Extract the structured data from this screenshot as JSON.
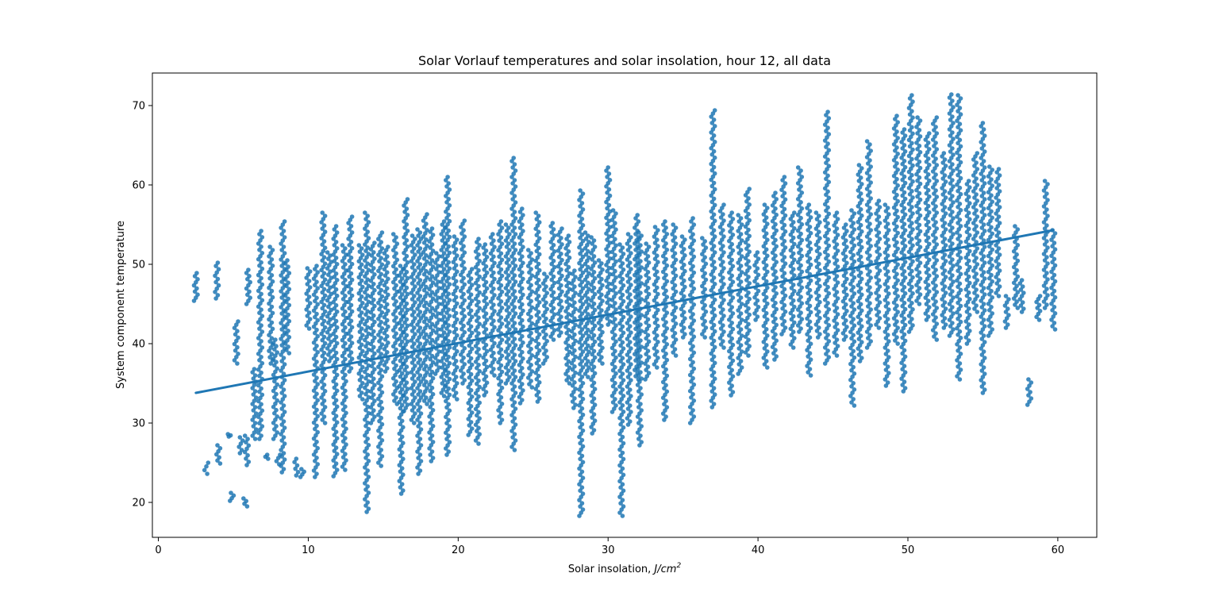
{
  "chart_data": {
    "type": "scatter",
    "title": "Solar Vorlauf temperatures and solar insolation, hour 12, all data",
    "xlabel": "Solar insolation, ",
    "xlabel_unit": "J/cm",
    "xlabel_unit_exponent": "2",
    "ylabel": "System component temperature",
    "xlim": [
      -0.4,
      62.6
    ],
    "ylim": [
      15.6,
      74.1
    ],
    "xticks": [
      0,
      10,
      20,
      30,
      40,
      50,
      60
    ],
    "yticks": [
      20,
      30,
      40,
      50,
      60,
      70
    ],
    "xtick_labels": [
      "0",
      "10",
      "20",
      "30",
      "40",
      "50",
      "60"
    ],
    "ytick_labels": [
      "20",
      "30",
      "40",
      "50",
      "60",
      "70"
    ],
    "grid": false,
    "legend": "none",
    "point_color": "#1f77b4",
    "regression_line": {
      "x": [
        2.5,
        59.7
      ],
      "y": [
        33.8,
        54.3
      ]
    },
    "columns": [
      [
        2.5,
        45.4,
        48.9
      ],
      [
        3.2,
        23.6,
        25.0
      ],
      [
        3.9,
        45.7,
        50.2
      ],
      [
        4.0,
        24.9,
        27.2
      ],
      [
        4.7,
        28.3,
        28.6
      ],
      [
        4.9,
        20.2,
        21.2
      ],
      [
        5.2,
        37.5,
        42.8
      ],
      [
        5.5,
        26.2,
        28.2
      ],
      [
        5.8,
        19.5,
        20.5
      ],
      [
        5.9,
        24.7,
        28.4
      ],
      [
        6.0,
        45.0,
        49.3
      ],
      [
        6.4,
        28.0,
        36.8
      ],
      [
        6.8,
        28.0,
        54.2
      ],
      [
        7.2,
        25.5,
        26.0
      ],
      [
        7.5,
        37.5,
        52.2
      ],
      [
        7.8,
        28.0,
        40.5
      ],
      [
        8.0,
        24.8,
        26.0
      ],
      [
        8.3,
        23.8,
        55.4
      ],
      [
        8.6,
        38.8,
        50.5
      ],
      [
        9.2,
        23.4,
        25.5
      ],
      [
        9.6,
        23.2,
        24.2
      ],
      [
        10.0,
        41.9,
        49.5
      ],
      [
        10.5,
        23.2,
        49.8
      ],
      [
        11.0,
        30.0,
        56.5
      ],
      [
        11.4,
        37.8,
        51.5
      ],
      [
        11.8,
        23.3,
        54.8
      ],
      [
        12.4,
        24.1,
        52.4
      ],
      [
        12.8,
        36.5,
        56.0
      ],
      [
        13.5,
        33.0,
        52.4
      ],
      [
        13.9,
        18.8,
        56.5
      ],
      [
        14.3,
        30.0,
        52.7
      ],
      [
        14.8,
        24.6,
        54.0
      ],
      [
        15.2,
        36.5,
        52.2
      ],
      [
        15.8,
        32.4,
        53.8
      ],
      [
        16.2,
        21.1,
        49.8
      ],
      [
        16.5,
        31.5,
        58.2
      ],
      [
        17.0,
        30.0,
        53.6
      ],
      [
        17.4,
        23.6,
        54.4
      ],
      [
        17.8,
        32.4,
        56.3
      ],
      [
        18.2,
        25.2,
        54.5
      ],
      [
        18.6,
        36.2,
        51.4
      ],
      [
        19.0,
        33.4,
        55.4
      ],
      [
        19.3,
        26.0,
        61.0
      ],
      [
        19.8,
        33.0,
        53.5
      ],
      [
        20.3,
        35.0,
        55.5
      ],
      [
        20.8,
        28.5,
        49.4
      ],
      [
        21.3,
        27.4,
        53.2
      ],
      [
        21.8,
        33.5,
        52.5
      ],
      [
        22.3,
        36.0,
        53.8
      ],
      [
        22.8,
        30.0,
        55.4
      ],
      [
        23.3,
        35.0,
        55.0
      ],
      [
        23.7,
        26.6,
        63.4
      ],
      [
        24.2,
        32.5,
        57.0
      ],
      [
        24.8,
        34.5,
        51.8
      ],
      [
        25.3,
        32.7,
        56.5
      ],
      [
        25.8,
        37.5,
        48.8
      ],
      [
        26.3,
        40.5,
        55.2
      ],
      [
        26.8,
        41.0,
        54.5
      ],
      [
        27.3,
        35.0,
        53.6
      ],
      [
        27.7,
        31.9,
        49.2
      ],
      [
        28.2,
        18.3,
        59.3
      ],
      [
        28.6,
        35.8,
        54.0
      ],
      [
        29.0,
        28.7,
        53.4
      ],
      [
        29.5,
        37.5,
        50.5
      ],
      [
        30.0,
        42.4,
        62.2
      ],
      [
        30.4,
        31.4,
        56.8
      ],
      [
        30.9,
        18.3,
        52.5
      ],
      [
        31.4,
        29.8,
        53.8
      ],
      [
        31.9,
        35.5,
        56.2
      ],
      [
        32.1,
        27.2,
        54.0
      ],
      [
        32.6,
        35.5,
        52.6
      ],
      [
        33.2,
        37.0,
        54.7
      ],
      [
        33.8,
        30.4,
        55.4
      ],
      [
        34.4,
        38.5,
        55.0
      ],
      [
        35.0,
        40.8,
        53.5
      ],
      [
        35.6,
        30.0,
        55.8
      ],
      [
        36.4,
        40.8,
        53.3
      ],
      [
        37.0,
        32.0,
        69.4
      ],
      [
        37.6,
        39.5,
        57.5
      ],
      [
        38.2,
        33.5,
        56.5
      ],
      [
        38.8,
        36.2,
        56.2
      ],
      [
        39.3,
        38.5,
        59.5
      ],
      [
        39.9,
        43.0,
        51.5
      ],
      [
        40.5,
        37.0,
        57.5
      ],
      [
        41.1,
        38.0,
        59.0
      ],
      [
        41.7,
        41.2,
        61.0
      ],
      [
        42.3,
        39.5,
        56.5
      ],
      [
        42.8,
        41.5,
        62.2
      ],
      [
        43.4,
        36.0,
        57.5
      ],
      [
        44.0,
        40.8,
        56.5
      ],
      [
        44.6,
        37.5,
        69.2
      ],
      [
        45.2,
        38.5,
        56.5
      ],
      [
        45.8,
        40.5,
        55.0
      ],
      [
        46.3,
        32.2,
        56.8
      ],
      [
        46.8,
        37.8,
        62.5
      ],
      [
        47.4,
        39.5,
        65.5
      ],
      [
        48.0,
        42.0,
        58.0
      ],
      [
        48.6,
        34.7,
        57.5
      ],
      [
        49.2,
        40.0,
        68.7
      ],
      [
        49.7,
        34.0,
        67.0
      ],
      [
        50.2,
        41.5,
        71.3
      ],
      [
        50.7,
        45.0,
        68.5
      ],
      [
        51.3,
        43.0,
        66.5
      ],
      [
        51.8,
        40.5,
        68.5
      ],
      [
        52.4,
        42.0,
        64.0
      ],
      [
        52.9,
        41.0,
        71.4
      ],
      [
        53.4,
        35.5,
        71.3
      ],
      [
        54.0,
        40.0,
        60.5
      ],
      [
        54.5,
        44.0,
        64.0
      ],
      [
        55.0,
        33.8,
        67.8
      ],
      [
        55.5,
        41.0,
        62.3
      ],
      [
        56.0,
        46.0,
        62.0
      ],
      [
        56.6,
        42.0,
        46.0
      ],
      [
        57.2,
        44.5,
        54.8
      ],
      [
        57.6,
        44.0,
        48.0
      ],
      [
        58.1,
        32.3,
        35.5
      ],
      [
        58.7,
        43.0,
        46.0
      ],
      [
        59.2,
        44.5,
        60.5
      ],
      [
        59.7,
        41.8,
        54.3
      ]
    ]
  }
}
